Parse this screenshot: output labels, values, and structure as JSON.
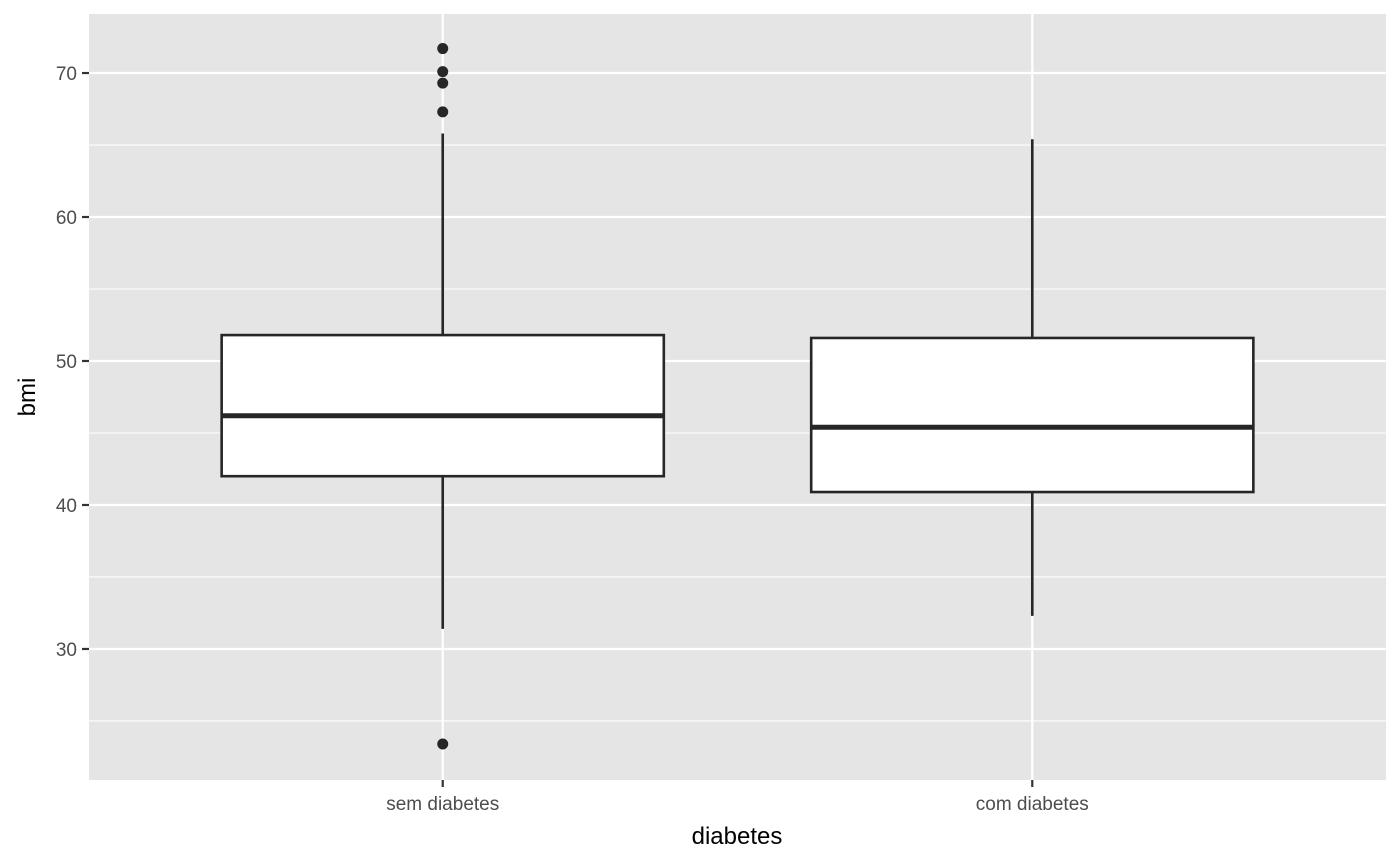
{
  "chart_data": {
    "type": "boxplot",
    "title": "",
    "xlabel": "diabetes",
    "ylabel": "bmi",
    "categories": [
      "sem diabetes",
      "com diabetes"
    ],
    "yticks": [
      30,
      40,
      50,
      60,
      70
    ],
    "ylim": [
      20.9,
      74.1
    ],
    "grid": true,
    "colors": {
      "panel": "#e5e5e5",
      "grid": "#ffffff",
      "box_fill": "#ffffff",
      "box_stroke": "#262626",
      "tick_label": "#4d4d4d",
      "axis_title": "#000000"
    },
    "boxes": [
      {
        "category": "sem diabetes",
        "whisker_low": 31.4,
        "q1": 42.0,
        "median": 46.2,
        "q3": 51.8,
        "whisker_high": 65.8,
        "outliers": [
          71.7,
          70.1,
          69.3,
          67.3,
          23.4
        ]
      },
      {
        "category": "com diabetes",
        "whisker_low": 32.3,
        "q1": 40.9,
        "median": 45.4,
        "q3": 51.6,
        "whisker_high": 65.4,
        "outliers": []
      }
    ]
  }
}
